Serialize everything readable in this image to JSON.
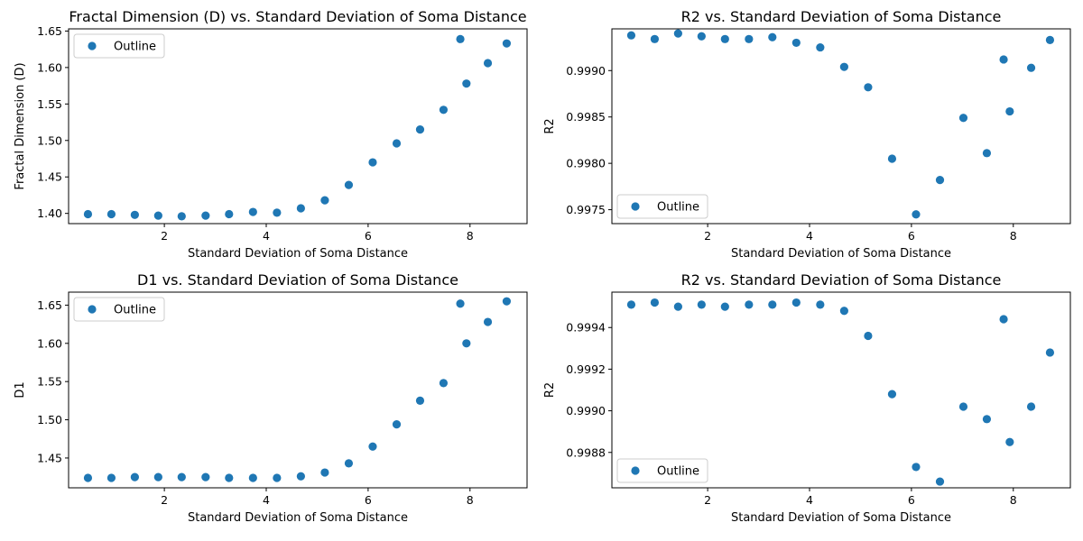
{
  "chart_data": [
    {
      "type": "scatter",
      "title": "Fractal Dimension (D) vs. Standard Deviation of Soma Distance",
      "xlabel": "Standard Deviation of Soma Distance",
      "ylabel": "Fractal Dimension (D)",
      "xlim": [
        0.12,
        9.12
      ],
      "ylim": [
        1.386,
        1.653
      ],
      "xticks": [
        2,
        4,
        6,
        8
      ],
      "yticks": [
        1.4,
        1.45,
        1.5,
        1.55,
        1.6,
        1.65
      ],
      "ytick_decimals": 2,
      "legend": {
        "position": "upper-left"
      },
      "grid": false,
      "series": [
        {
          "name": "Outline",
          "color": "#1f77b4",
          "x": [
            0.5,
            0.96,
            1.42,
            1.88,
            2.34,
            2.81,
            3.27,
            3.74,
            4.21,
            4.68,
            5.15,
            5.62,
            6.09,
            6.56,
            7.02,
            7.48,
            7.81,
            7.93,
            8.35,
            8.72
          ],
          "y": [
            1.399,
            1.399,
            1.398,
            1.397,
            1.396,
            1.397,
            1.399,
            1.402,
            1.401,
            1.407,
            1.418,
            1.439,
            1.47,
            1.496,
            1.515,
            1.542,
            1.639,
            1.578,
            1.606,
            1.633
          ]
        }
      ]
    },
    {
      "type": "scatter",
      "title": "R2 vs. Standard Deviation of Soma Distance",
      "xlabel": "Standard Deviation of Soma Distance",
      "ylabel": "R2",
      "xlim": [
        0.12,
        9.12
      ],
      "ylim": [
        0.99735,
        0.99945
      ],
      "xticks": [
        2,
        4,
        6,
        8
      ],
      "yticks": [
        0.9975,
        0.998,
        0.9985,
        0.999
      ],
      "ytick_decimals": 4,
      "legend": {
        "position": "lower-left"
      },
      "grid": false,
      "series": [
        {
          "name": "Outline",
          "color": "#1f77b4",
          "x": [
            0.5,
            0.96,
            1.42,
            1.88,
            2.34,
            2.81,
            3.27,
            3.74,
            4.21,
            4.68,
            5.15,
            5.62,
            6.09,
            6.56,
            7.02,
            7.48,
            7.81,
            7.93,
            8.35,
            8.72
          ],
          "y": [
            0.99938,
            0.99934,
            0.9994,
            0.99937,
            0.99934,
            0.99934,
            0.99936,
            0.9993,
            0.99925,
            0.99904,
            0.99882,
            0.99805,
            0.99745,
            0.99782,
            0.99849,
            0.99811,
            0.99912,
            0.99856,
            0.99903,
            0.99933
          ]
        }
      ]
    },
    {
      "type": "scatter",
      "title": "D1 vs. Standard Deviation of Soma Distance",
      "xlabel": "Standard Deviation of Soma Distance",
      "ylabel": "D1",
      "xlim": [
        0.12,
        9.12
      ],
      "ylim": [
        1.411,
        1.667
      ],
      "xticks": [
        2,
        4,
        6,
        8
      ],
      "yticks": [
        1.45,
        1.5,
        1.55,
        1.6,
        1.65
      ],
      "ytick_decimals": 2,
      "legend": {
        "position": "upper-left"
      },
      "grid": false,
      "series": [
        {
          "name": "Outline",
          "color": "#1f77b4",
          "x": [
            0.5,
            0.96,
            1.42,
            1.88,
            2.34,
            2.81,
            3.27,
            3.74,
            4.21,
            4.68,
            5.15,
            5.62,
            6.09,
            6.56,
            7.02,
            7.48,
            7.81,
            7.93,
            8.35,
            8.72
          ],
          "y": [
            1.424,
            1.424,
            1.425,
            1.425,
            1.425,
            1.425,
            1.424,
            1.424,
            1.424,
            1.426,
            1.431,
            1.443,
            1.465,
            1.494,
            1.525,
            1.548,
            1.652,
            1.6,
            1.628,
            1.655
          ]
        }
      ]
    },
    {
      "type": "scatter",
      "title": "R2 vs. Standard Deviation of Soma Distance",
      "xlabel": "Standard Deviation of Soma Distance",
      "ylabel": "R2",
      "xlim": [
        0.12,
        9.12
      ],
      "ylim": [
        0.99863,
        0.99957
      ],
      "xticks": [
        2,
        4,
        6,
        8
      ],
      "yticks": [
        0.9988,
        0.999,
        0.9992,
        0.9994
      ],
      "ytick_decimals": 4,
      "legend": {
        "position": "lower-left"
      },
      "grid": false,
      "series": [
        {
          "name": "Outline",
          "color": "#1f77b4",
          "x": [
            0.5,
            0.96,
            1.42,
            1.88,
            2.34,
            2.81,
            3.27,
            3.74,
            4.21,
            4.68,
            5.15,
            5.62,
            6.09,
            6.56,
            7.02,
            7.48,
            7.81,
            7.93,
            8.35,
            8.72
          ],
          "y": [
            0.99951,
            0.99952,
            0.9995,
            0.99951,
            0.9995,
            0.99951,
            0.99951,
            0.99952,
            0.99951,
            0.99948,
            0.99936,
            0.99908,
            0.99873,
            0.99866,
            0.99902,
            0.99896,
            0.99944,
            0.99885,
            0.99902,
            0.99928
          ]
        }
      ]
    }
  ]
}
